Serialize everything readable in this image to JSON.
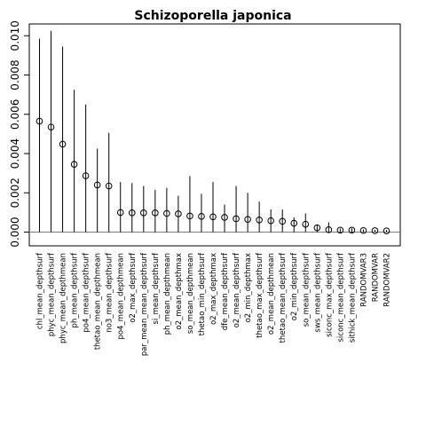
{
  "chart_data": {
    "type": "scatter",
    "title": "Schizoporella japonica",
    "xlabel": "",
    "ylabel": "",
    "ylim": [
      -0.0007,
      0.0106
    ],
    "yticks": [
      0.0,
      0.002,
      0.004,
      0.006,
      0.008,
      0.01
    ],
    "ytick_labels": [
      "0.000",
      "0.002",
      "0.004",
      "0.006",
      "0.008",
      "0.010"
    ],
    "baseline": 0,
    "baseline_color": "#e05050",
    "marker": "open-circle",
    "whisker": "upper-range-line",
    "categories": [
      "chl_mean_depthsurf",
      "phyc_mean_depthsurf",
      "phyc_mean_depthmean",
      "ph_mean_depthsurf",
      "po4_mean_depthsurf",
      "thetao_mean_depthmean",
      "no3_mean_depthsurf",
      "po4_mean_depthmean",
      "o2_max_depthsurf",
      "par_mean_mean_depthsurf",
      "si_mean_depthsurf",
      "ph_mean_depthmean",
      "o2_mean_depthmax",
      "so_mean_depthmean",
      "thetao_min_depthsurf",
      "o2_max_depthmax",
      "dfe_mean_depthsurf",
      "o2_mean_depthsurf",
      "o2_min_depthmax",
      "thetao_max_depthsurf",
      "o2_mean_depthmean",
      "thetao_mean_depthsurf",
      "o2_min_depthsurf",
      "so_mean_depthsurf",
      "sws_mean_depthsurf",
      "siconc_max_depthsurf",
      "siconc_mean_depthsurf",
      "sithick_mean_depthsurf",
      "RANDOMVAR3",
      "RANDOMVAR",
      "RANDOMVAR2"
    ],
    "series": [
      {
        "values": [
          0.00565,
          0.00535,
          0.00448,
          0.00345,
          0.00287,
          0.0024,
          0.00235,
          0.001,
          0.00098,
          0.00098,
          0.00098,
          0.00095,
          0.00093,
          0.00082,
          0.0008,
          0.00078,
          0.00075,
          0.00068,
          0.00065,
          0.00062,
          0.00058,
          0.00055,
          0.00045,
          0.0004,
          0.00022,
          0.00012,
          0.0001,
          0.0001,
          8e-05,
          7e-05,
          6e-05
        ],
        "upper": [
          0.00985,
          0.01025,
          0.00945,
          0.00725,
          0.0065,
          0.00425,
          0.00505,
          0.00255,
          0.0025,
          0.00235,
          0.00215,
          0.00225,
          0.00185,
          0.00285,
          0.00195,
          0.00255,
          0.0014,
          0.00235,
          0.002,
          0.00155,
          0.00115,
          0.00115,
          0.00075,
          0.00095,
          0.00035,
          0.0005,
          0.00018,
          0.0002,
          0.00014,
          0.00012,
          0.0001
        ]
      }
    ]
  }
}
